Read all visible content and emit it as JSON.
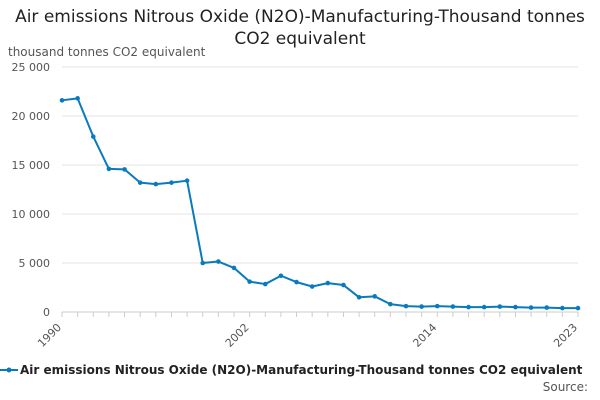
{
  "chart_data": {
    "type": "line",
    "title": "Air emissions Nitrous Oxide (N2O)-Manufacturing-Thousand tonnes CO2 equivalent",
    "ylabel": "thousand tonnes CO2 equivalent",
    "xlabel": "",
    "x": [
      1990,
      1991,
      1992,
      1993,
      1994,
      1995,
      1996,
      1997,
      1998,
      1999,
      2000,
      2001,
      2002,
      2003,
      2004,
      2005,
      2006,
      2007,
      2008,
      2009,
      2010,
      2011,
      2012,
      2013,
      2014,
      2015,
      2016,
      2017,
      2018,
      2019,
      2020,
      2021,
      2022,
      2023
    ],
    "xlim": [
      1990,
      2023
    ],
    "x_ticks": [
      1990,
      2002,
      2014,
      2023
    ],
    "ylim": [
      0,
      25000
    ],
    "y_ticks": [
      0,
      5000,
      10000,
      15000,
      20000,
      25000
    ],
    "y_tick_labels": [
      "0",
      "5 000",
      "10 000",
      "15 000",
      "20 000",
      "25 000"
    ],
    "grid": true,
    "legend_position": "bottom",
    "series": [
      {
        "name": "Air emissions Nitrous Oxide (N2O)-Manufacturing-Thousand tonnes CO2 equivalent",
        "color": "#0a7abf",
        "values": [
          21600,
          21800,
          17900,
          14600,
          14550,
          13200,
          13050,
          13200,
          13400,
          5000,
          5150,
          4500,
          3100,
          2850,
          3700,
          3050,
          2600,
          2950,
          2750,
          1500,
          1600,
          800,
          600,
          550,
          600,
          550,
          500,
          500,
          550,
          500,
          450,
          450,
          400,
          400
        ]
      }
    ]
  },
  "source_label": "Source:"
}
